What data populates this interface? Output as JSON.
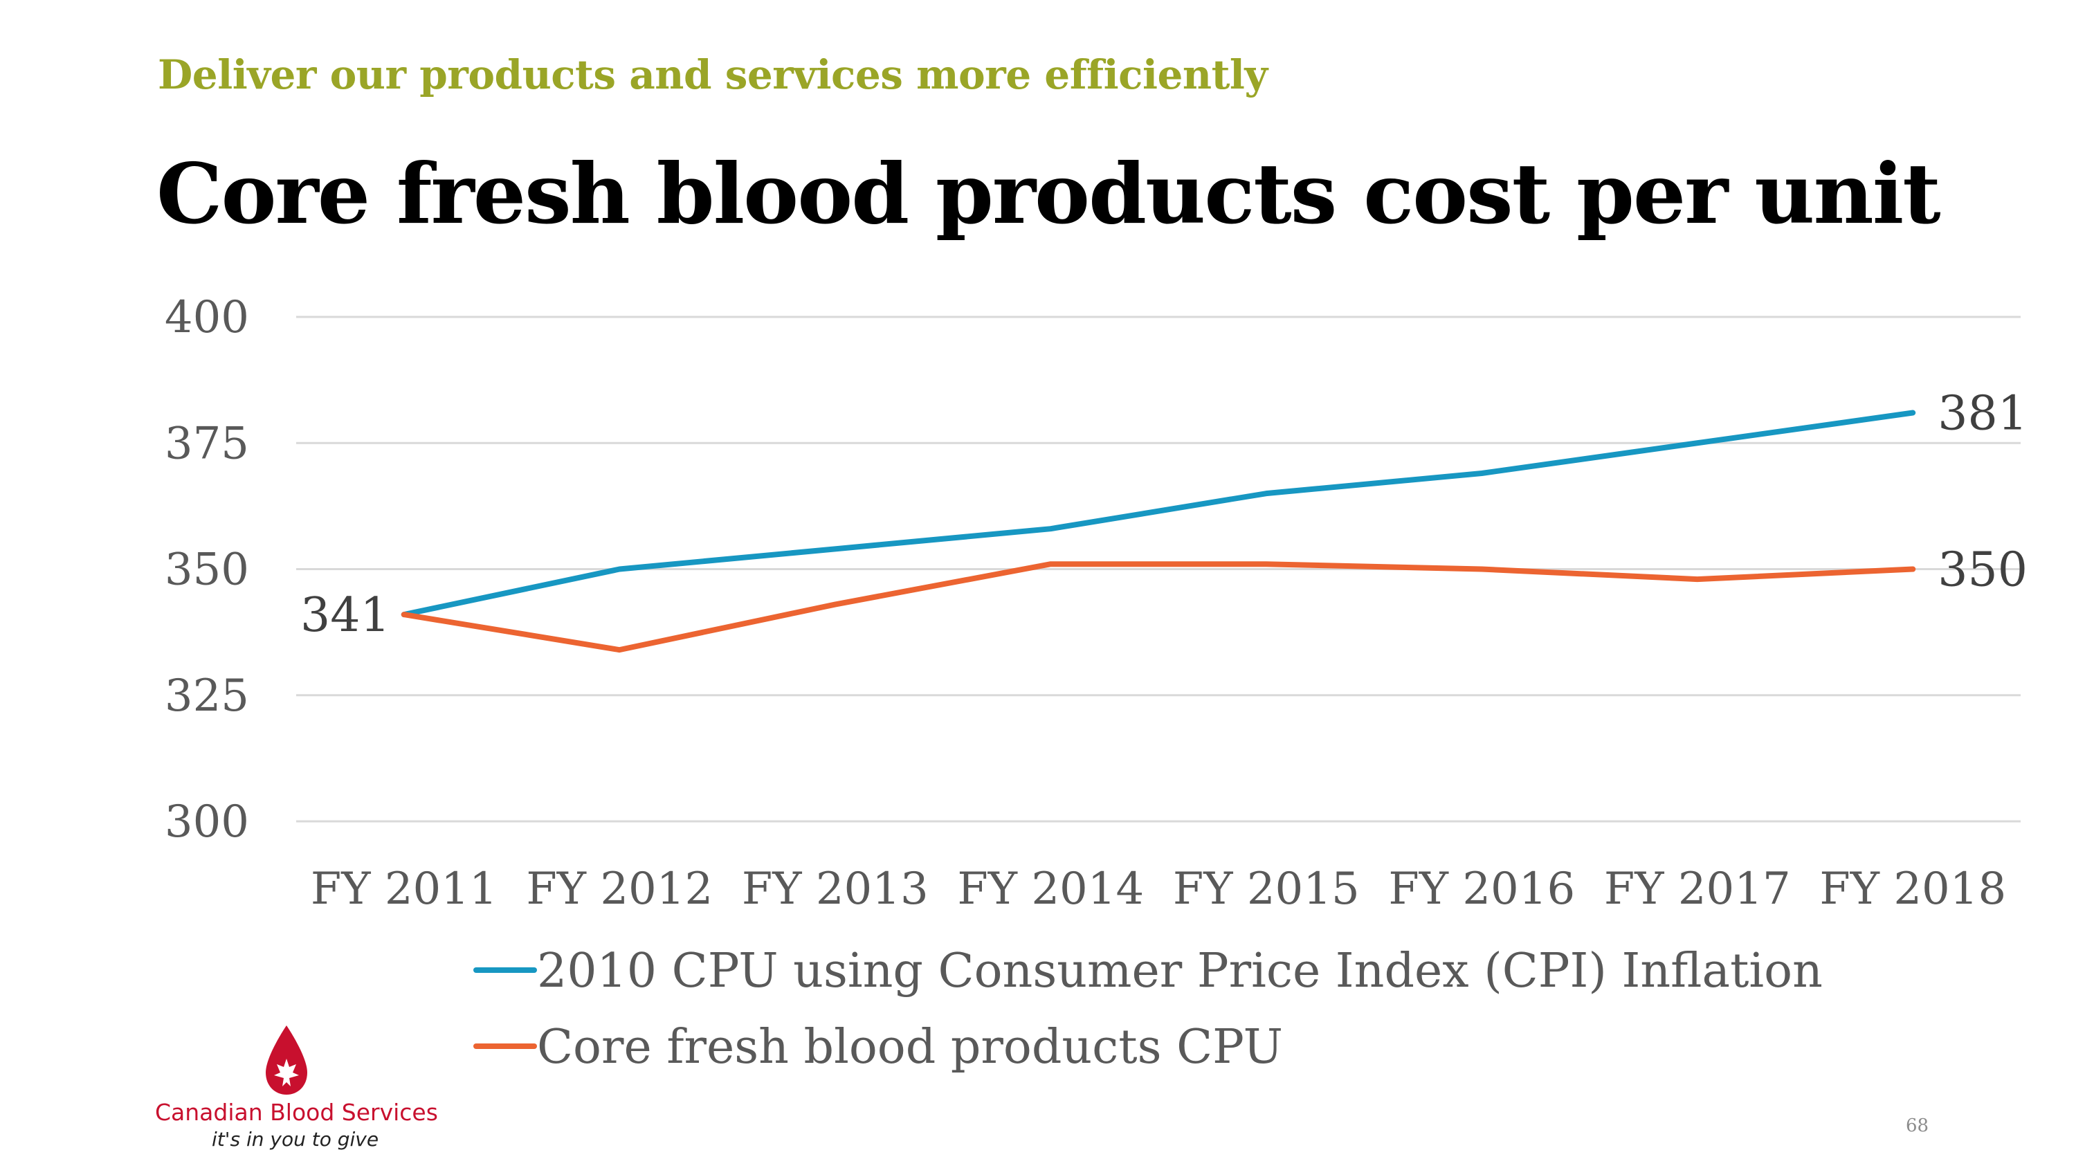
{
  "slide": {
    "subtitle": "Deliver our products and services more efficiently",
    "title": "Core fresh blood products cost per unit",
    "page_number": "68"
  },
  "logo": {
    "name": "Canadian Blood Services",
    "tagline": "it's in you to give"
  },
  "colors": {
    "subtitle": "#9aa527",
    "cpi_series": "#1797c2",
    "cpu_series": "#ec6431",
    "gridline": "#d9d9d9",
    "logo_red": "#c8102e"
  },
  "chart_data": {
    "type": "line",
    "categories": [
      "FY 2011",
      "FY 2012",
      "FY 2013",
      "FY 2014",
      "FY 2015",
      "FY 2016",
      "FY 2017",
      "FY 2018"
    ],
    "series": [
      {
        "name": "2010 CPU using Consumer Price Index (CPI) Inflation",
        "color": "#1797c2",
        "values": [
          341,
          350,
          354,
          358,
          365,
          369,
          375,
          381
        ]
      },
      {
        "name": "Core fresh blood products CPU",
        "color": "#ec6431",
        "values": [
          341,
          334,
          343,
          351,
          351,
          350,
          348,
          350
        ]
      }
    ],
    "data_labels": {
      "start": "341",
      "end_series_1": "381",
      "end_series_2": "350"
    },
    "ylim": [
      300,
      400
    ],
    "yticks": [
      "300",
      "325",
      "350",
      "375",
      "400"
    ],
    "grid": true,
    "legend_position": "bottom"
  }
}
